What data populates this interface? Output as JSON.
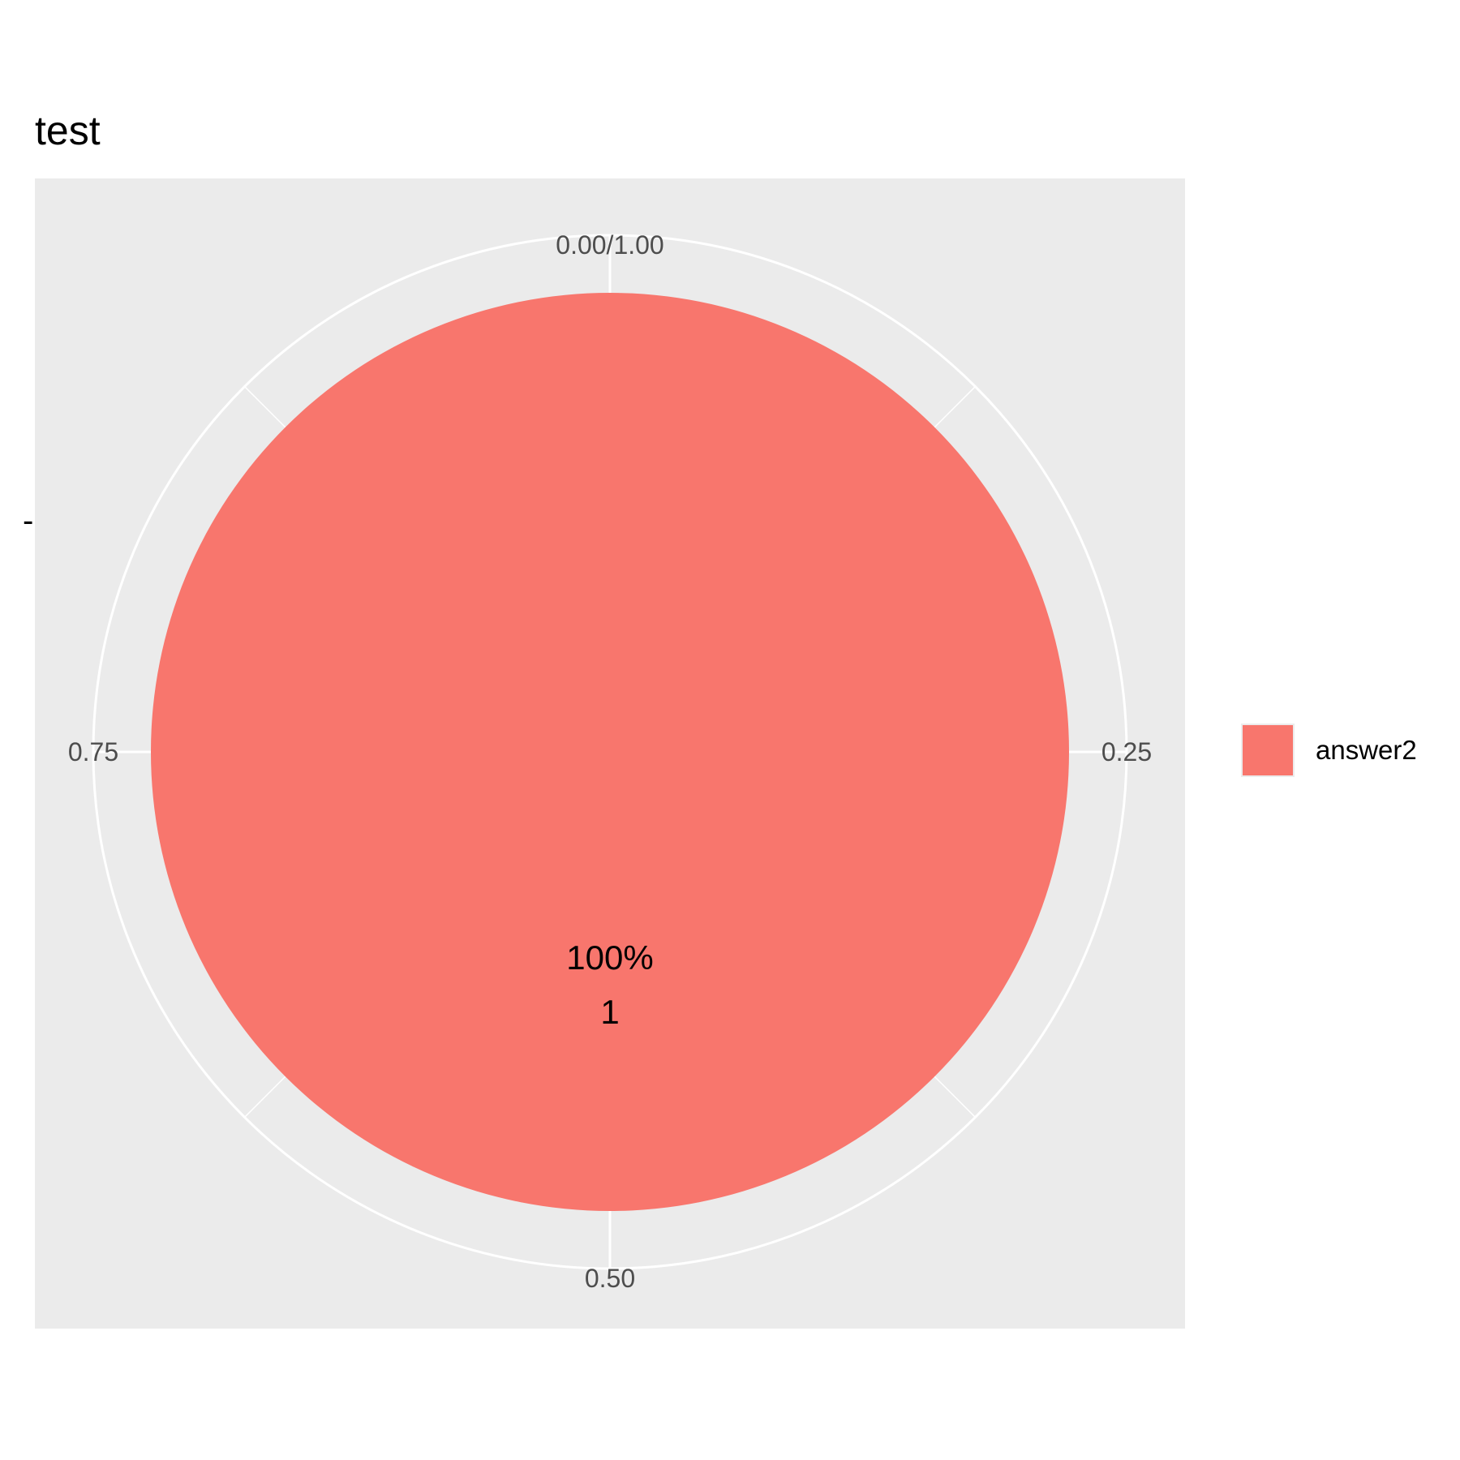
{
  "chart_data": {
    "type": "pie",
    "title": "test",
    "ylabel": "-",
    "theta_ticks": [
      {
        "value": 0.0,
        "label": "0.00/1.00"
      },
      {
        "value": 0.25,
        "label": "0.25"
      },
      {
        "value": 0.5,
        "label": "0.50"
      },
      {
        "value": 0.75,
        "label": "0.75"
      }
    ],
    "slices": [
      {
        "name": "answer2",
        "value": 1,
        "proportion": 1.0,
        "percent_label": "100%",
        "count_label": "1",
        "color": "#F8766D"
      }
    ],
    "legend": {
      "position": "right",
      "entries": [
        "answer2"
      ]
    },
    "panel_background": "#EBEBEB",
    "grid_color": "#FFFFFF"
  }
}
